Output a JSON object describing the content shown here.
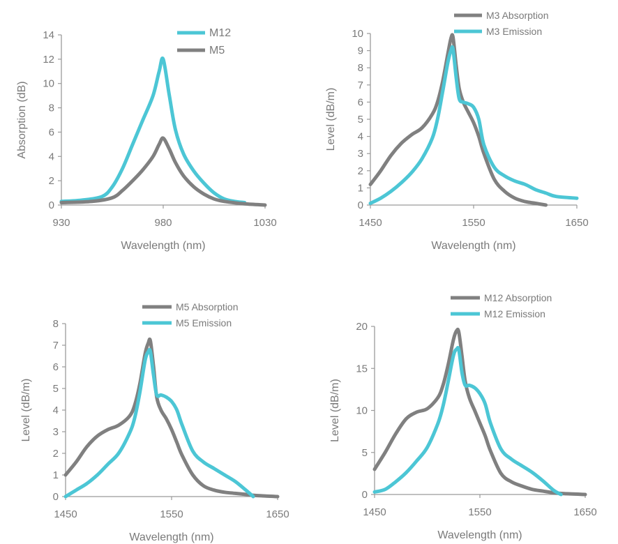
{
  "colors": {
    "gray": "#808080",
    "teal": "#4cc6d5",
    "axis": "#9a9a9a",
    "text": "#7a7a7a"
  },
  "chart_data": [
    {
      "type": "line",
      "xlabel": "Wavelength (nm)",
      "ylabel": "Absorption (dB)",
      "xlim": [
        930,
        1030
      ],
      "ylim": [
        0,
        14
      ],
      "xticks": [
        "930",
        "980",
        "1030"
      ],
      "yticks": [
        "0",
        "2",
        "4",
        "6",
        "8",
        "10",
        "12",
        "14"
      ],
      "legend": "top-right",
      "series": [
        {
          "name": "M12",
          "color": "teal",
          "x": [
            930,
            940,
            950,
            955,
            960,
            965,
            970,
            975,
            978,
            980,
            983,
            986,
            990,
            995,
            1000,
            1005,
            1010,
            1015,
            1020
          ],
          "y": [
            0.3,
            0.4,
            0.7,
            1.5,
            3.0,
            5.0,
            7.0,
            9.0,
            11.0,
            12.0,
            9.0,
            6.2,
            4.2,
            2.8,
            1.8,
            1.0,
            0.5,
            0.3,
            0.2
          ]
        },
        {
          "name": "M5",
          "color": "gray",
          "x": [
            930,
            945,
            955,
            960,
            965,
            970,
            975,
            978,
            980,
            983,
            986,
            990,
            995,
            1000,
            1005,
            1010,
            1020,
            1030
          ],
          "y": [
            0.2,
            0.3,
            0.6,
            1.2,
            2.0,
            2.9,
            4.0,
            5.0,
            5.5,
            4.6,
            3.5,
            2.4,
            1.5,
            0.9,
            0.5,
            0.3,
            0.1,
            0.0
          ]
        }
      ]
    },
    {
      "type": "line",
      "xlabel": "Wavelength (nm)",
      "ylabel": "Level (dB/m)",
      "xlim": [
        1450,
        1650
      ],
      "ylim": [
        0,
        10
      ],
      "xticks": [
        "1450",
        "1550",
        "1650"
      ],
      "yticks": [
        "0",
        "1",
        "2",
        "3",
        "4",
        "5",
        "6",
        "7",
        "8",
        "9",
        "10"
      ],
      "legend": "top-right",
      "series": [
        {
          "name": "M3 Absorption",
          "color": "gray",
          "x": [
            1450,
            1460,
            1470,
            1480,
            1490,
            1500,
            1510,
            1515,
            1520,
            1525,
            1528,
            1530,
            1533,
            1536,
            1540,
            1545,
            1550,
            1555,
            1560,
            1570,
            1580,
            1590,
            1600,
            1610,
            1620
          ],
          "y": [
            1.2,
            2.0,
            2.9,
            3.6,
            4.1,
            4.5,
            5.3,
            6.0,
            7.2,
            8.8,
            9.7,
            9.8,
            8.2,
            6.8,
            6.0,
            5.4,
            4.8,
            4.0,
            3.0,
            1.5,
            0.8,
            0.4,
            0.2,
            0.1,
            0.0
          ]
        },
        {
          "name": "M3 Emission",
          "color": "teal",
          "x": [
            1450,
            1460,
            1470,
            1480,
            1490,
            1500,
            1510,
            1515,
            1520,
            1525,
            1528,
            1530,
            1533,
            1536,
            1540,
            1545,
            1550,
            1555,
            1560,
            1570,
            1580,
            1590,
            1600,
            1610,
            1620,
            1630,
            1650
          ],
          "y": [
            0.1,
            0.4,
            0.8,
            1.3,
            1.9,
            2.7,
            3.9,
            5.0,
            6.6,
            8.3,
            9.0,
            9.1,
            7.5,
            6.2,
            6.0,
            5.9,
            5.7,
            5.0,
            3.5,
            2.2,
            1.7,
            1.4,
            1.2,
            0.9,
            0.7,
            0.5,
            0.4
          ]
        }
      ]
    },
    {
      "type": "line",
      "xlabel": "Wavelength (nm)",
      "ylabel": "Level (dB/m)",
      "xlim": [
        1450,
        1650
      ],
      "ylim": [
        0,
        8
      ],
      "xticks": [
        "1450",
        "1550",
        "1650"
      ],
      "yticks": [
        "0",
        "1",
        "2",
        "3",
        "4",
        "5",
        "6",
        "7",
        "8"
      ],
      "legend": "top-right",
      "series": [
        {
          "name": "M5 Absorption",
          "color": "gray",
          "x": [
            1450,
            1460,
            1470,
            1480,
            1490,
            1500,
            1510,
            1515,
            1520,
            1525,
            1528,
            1530,
            1533,
            1536,
            1540,
            1545,
            1550,
            1555,
            1560,
            1570,
            1580,
            1590,
            1600,
            1610,
            1620,
            1630,
            1650
          ],
          "y": [
            1.0,
            1.6,
            2.3,
            2.8,
            3.1,
            3.3,
            3.7,
            4.2,
            5.2,
            6.6,
            7.1,
            7.2,
            6.0,
            4.6,
            4.0,
            3.6,
            3.1,
            2.5,
            1.9,
            1.0,
            0.5,
            0.3,
            0.2,
            0.15,
            0.1,
            0.05,
            0.0
          ]
        },
        {
          "name": "M5 Emission",
          "color": "teal",
          "x": [
            1450,
            1460,
            1470,
            1480,
            1490,
            1500,
            1510,
            1515,
            1520,
            1525,
            1528,
            1530,
            1533,
            1536,
            1540,
            1545,
            1550,
            1555,
            1560,
            1570,
            1580,
            1590,
            1600,
            1610,
            1620,
            1627
          ],
          "y": [
            0.0,
            0.3,
            0.6,
            1.0,
            1.5,
            2.0,
            2.9,
            3.6,
            4.8,
            6.3,
            6.7,
            6.7,
            5.6,
            4.7,
            4.7,
            4.6,
            4.4,
            4.0,
            3.3,
            2.1,
            1.6,
            1.3,
            1.0,
            0.7,
            0.3,
            0.0
          ]
        }
      ]
    },
    {
      "type": "line",
      "xlabel": "Wavelength (nm)",
      "ylabel": "Level (dB/m)",
      "xlim": [
        1450,
        1650
      ],
      "ylim": [
        0,
        20
      ],
      "xticks": [
        "1450",
        "1550",
        "1650"
      ],
      "yticks": [
        "0",
        "5",
        "10",
        "15",
        "20"
      ],
      "legend": "top-right",
      "series": [
        {
          "name": "M12 Absorption",
          "color": "gray",
          "x": [
            1450,
            1460,
            1470,
            1480,
            1490,
            1500,
            1510,
            1515,
            1520,
            1525,
            1528,
            1530,
            1533,
            1536,
            1540,
            1545,
            1550,
            1555,
            1560,
            1570,
            1580,
            1590,
            1600,
            1610,
            1620,
            1630,
            1650
          ],
          "y": [
            3.0,
            5.0,
            7.2,
            9.0,
            9.8,
            10.2,
            11.5,
            13.0,
            15.5,
            18.5,
            19.5,
            19.3,
            16.5,
            13.5,
            11.5,
            10.0,
            8.5,
            7.0,
            5.2,
            2.5,
            1.5,
            1.0,
            0.6,
            0.4,
            0.2,
            0.1,
            0.0
          ]
        },
        {
          "name": "M12 Emission",
          "color": "teal",
          "x": [
            1450,
            1460,
            1470,
            1480,
            1490,
            1500,
            1510,
            1515,
            1520,
            1525,
            1528,
            1530,
            1533,
            1536,
            1540,
            1545,
            1550,
            1555,
            1560,
            1570,
            1580,
            1590,
            1600,
            1610,
            1620,
            1627
          ],
          "y": [
            0.3,
            0.6,
            1.5,
            2.6,
            4.0,
            5.6,
            8.4,
            10.5,
            13.5,
            16.6,
            17.3,
            17.2,
            14.5,
            13.0,
            13.0,
            12.7,
            12.0,
            10.8,
            8.5,
            5.4,
            4.2,
            3.4,
            2.6,
            1.6,
            0.5,
            0.0
          ]
        }
      ]
    }
  ]
}
